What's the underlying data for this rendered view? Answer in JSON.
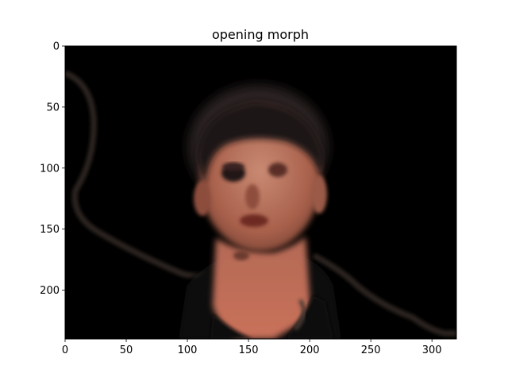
{
  "chart_data": {
    "type": "heatmap",
    "title": "opening morph",
    "xlabel": "",
    "ylabel": "",
    "xlim": [
      0,
      320
    ],
    "ylim": [
      240,
      0
    ],
    "x_ticks": [
      0,
      50,
      100,
      150,
      200,
      250,
      300
    ],
    "y_ticks": [
      0,
      50,
      100,
      150,
      200
    ],
    "x_tick_labels": [
      "0",
      "50",
      "100",
      "150",
      "200",
      "250",
      "300"
    ],
    "y_tick_labels": [
      "0",
      "50",
      "100",
      "150",
      "200"
    ],
    "grid": false,
    "image_content": "blurred photo of a man's face and shoulders (dark hair, dark shirt) on a black background; morphological opening applied",
    "colors": {
      "background": "#000000",
      "skin": "#b36a55",
      "skin_light": "#c98a73",
      "hair": "#1a1614",
      "edge_glow": "#2a2422",
      "shirt": "#0b0908",
      "axes": "#000000"
    }
  }
}
